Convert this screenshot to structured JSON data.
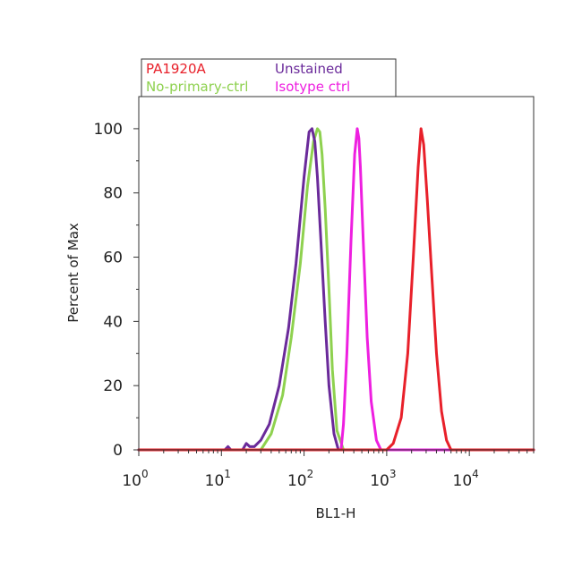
{
  "chart_data": {
    "type": "line",
    "title": "",
    "xlabel": "BL1-H",
    "ylabel": "Percent of Max",
    "x_scale": "log",
    "xlim": [
      1,
      60000
    ],
    "ylim": [
      0,
      110
    ],
    "grid": false,
    "legend_position": "top-left",
    "x_ticks": [
      {
        "value": 1,
        "base": "10",
        "exp": "0"
      },
      {
        "value": 10,
        "base": "10",
        "exp": "1"
      },
      {
        "value": 100,
        "base": "10",
        "exp": "2"
      },
      {
        "value": 1000,
        "base": "10",
        "exp": "3"
      },
      {
        "value": 10000,
        "base": "10",
        "exp": "4"
      }
    ],
    "y_ticks": [
      "0",
      "20",
      "40",
      "60",
      "80",
      "100"
    ],
    "legend": [
      {
        "name": "PA1920A",
        "color": "#e8202a"
      },
      {
        "name": "Unstained",
        "color": "#6a2a9a"
      },
      {
        "name": "No-primary-ctrl",
        "color": "#8ed14f"
      },
      {
        "name": "Isotype ctrl",
        "color": "#ee1fe0"
      }
    ],
    "series": [
      {
        "name": "No-primary-ctrl",
        "color": "#8ed14f",
        "x": [
          1,
          30,
          40,
          55,
          70,
          90,
          110,
          130,
          145,
          155,
          165,
          180,
          200,
          220,
          250,
          300,
          60000
        ],
        "y": [
          0,
          0,
          5,
          17,
          35,
          58,
          82,
          96,
          100,
          99,
          92,
          75,
          50,
          25,
          6,
          0,
          0
        ]
      },
      {
        "name": "Unstained",
        "color": "#6a2a9a",
        "x": [
          1,
          11,
          12,
          13,
          18,
          20,
          22,
          25,
          30,
          38,
          50,
          65,
          80,
          100,
          115,
          125,
          135,
          145,
          160,
          180,
          200,
          230,
          260,
          60000
        ],
        "y": [
          0,
          0,
          1,
          0,
          0,
          2,
          1,
          1,
          3,
          8,
          20,
          38,
          58,
          85,
          99,
          100,
          96,
          85,
          65,
          40,
          20,
          5,
          0,
          0
        ]
      },
      {
        "name": "Isotype ctrl",
        "color": "#ee1fe0",
        "x": [
          1,
          280,
          300,
          330,
          370,
          410,
          440,
          460,
          480,
          520,
          580,
          650,
          750,
          850,
          60000
        ],
        "y": [
          0,
          0,
          8,
          30,
          65,
          92,
          100,
          97,
          88,
          65,
          35,
          15,
          3,
          0,
          0
        ]
      },
      {
        "name": "PA1920A",
        "color": "#e8202a",
        "x": [
          1,
          1000,
          1200,
          1500,
          1800,
          2100,
          2400,
          2600,
          2800,
          3100,
          3500,
          4000,
          4600,
          5300,
          6000,
          60000
        ],
        "y": [
          0,
          0,
          2,
          10,
          30,
          60,
          88,
          100,
          95,
          78,
          55,
          30,
          12,
          3,
          0,
          0
        ]
      }
    ]
  }
}
